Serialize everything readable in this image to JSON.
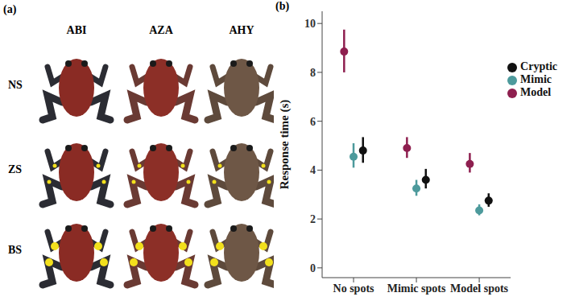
{
  "panel_a": {
    "label": "(a)",
    "columns": [
      "ABI",
      "AZA",
      "AHY"
    ],
    "rows": [
      "NS",
      "ZS",
      "BS"
    ]
  },
  "chart_data": {
    "type": "scatter",
    "title": "(b)",
    "y_label": "Response time (s)",
    "categories": [
      "No spots",
      "Mimic spots",
      "Model spots"
    ],
    "series": [
      {
        "name": "Model",
        "color": "#8e1f4f",
        "values": [
          8.85,
          4.9,
          4.25
        ],
        "error_low": [
          8.0,
          4.5,
          3.9
        ],
        "error_high": [
          9.75,
          5.35,
          4.7
        ]
      },
      {
        "name": "Mimic",
        "color": "#4d9a9c",
        "values": [
          4.55,
          3.25,
          2.35
        ],
        "error_low": [
          4.1,
          2.95,
          2.15
        ],
        "error_high": [
          5.1,
          3.6,
          2.6
        ]
      },
      {
        "name": "Cryptic",
        "color": "#111111",
        "values": [
          4.8,
          3.6,
          2.75
        ],
        "error_low": [
          4.3,
          3.25,
          2.5
        ],
        "error_high": [
          5.35,
          4.05,
          3.05
        ]
      }
    ],
    "ylim": [
      -0.4,
      10.5
    ],
    "yticks": [
      0,
      2,
      4,
      6,
      8,
      10
    ],
    "legend": "upper right",
    "marker": "circle"
  }
}
